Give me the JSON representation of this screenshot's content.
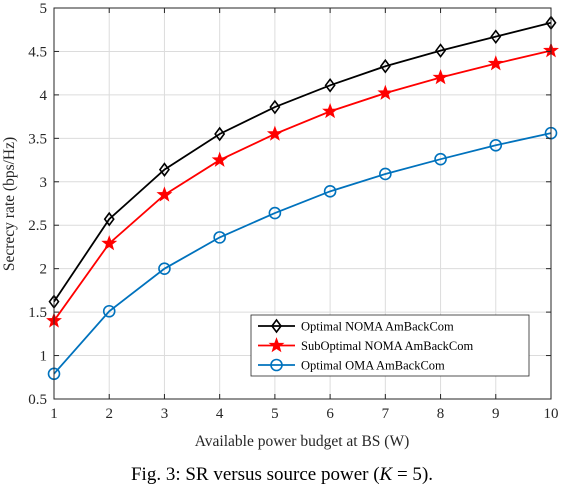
{
  "caption": {
    "prefix": "Fig. 3: SR versus source power (",
    "var": "K",
    "eq": " = 5",
    "suffix": ")."
  },
  "chart_data": {
    "type": "line",
    "title": "",
    "xlabel": "Available power budget at BS (W)",
    "ylabel": "Secrecy rate (bps/Hz)",
    "xlim": [
      1,
      10
    ],
    "ylim": [
      0.5,
      5
    ],
    "xticks": [
      1,
      2,
      3,
      4,
      5,
      6,
      7,
      8,
      9,
      10
    ],
    "yticks": [
      0.5,
      1,
      1.5,
      2,
      2.5,
      3,
      3.5,
      4,
      4.5,
      5
    ],
    "ytick_labels": [
      "0.5",
      "1",
      "1.5",
      "2",
      "2.5",
      "3",
      "3.5",
      "4",
      "4.5",
      "5"
    ],
    "grid": true,
    "legend_position": "bottom-right",
    "x": [
      1,
      2,
      3,
      4,
      5,
      6,
      7,
      8,
      9,
      10
    ],
    "series": [
      {
        "name": "Optimal NOMA AmBackCom",
        "color": "#000000",
        "marker": "diamond",
        "values": [
          1.62,
          2.57,
          3.14,
          3.55,
          3.86,
          4.11,
          4.33,
          4.51,
          4.67,
          4.83
        ]
      },
      {
        "name": "SubOptimal NOMA AmBackCom",
        "color": "#ff0000",
        "marker": "star",
        "values": [
          1.4,
          2.29,
          2.85,
          3.25,
          3.55,
          3.81,
          4.02,
          4.2,
          4.36,
          4.51
        ]
      },
      {
        "name": "Optimal OMA AmBackCom",
        "color": "#0072bd",
        "marker": "circle",
        "values": [
          0.79,
          1.51,
          2.0,
          2.36,
          2.64,
          2.89,
          3.09,
          3.26,
          3.42,
          3.56
        ]
      }
    ]
  }
}
